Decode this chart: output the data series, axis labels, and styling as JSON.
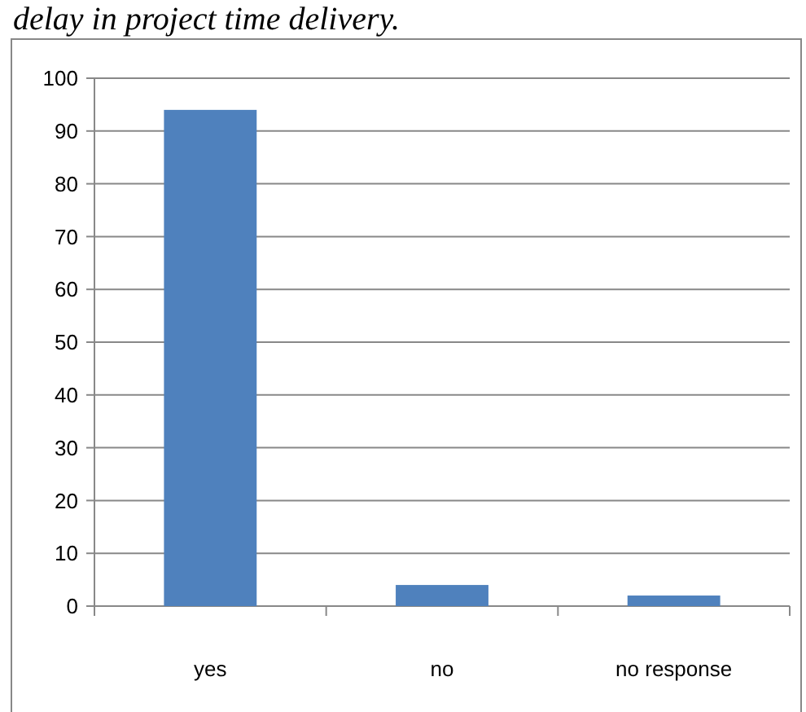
{
  "chart_data": {
    "type": "bar",
    "title": "delay in project time delivery.",
    "categories": [
      "yes",
      "no",
      "no response"
    ],
    "values": [
      94,
      4,
      2
    ],
    "color": "#4f81bd",
    "ylim": [
      0,
      100
    ],
    "yticks": [
      0,
      10,
      20,
      30,
      40,
      50,
      60,
      70,
      80,
      90,
      100
    ],
    "grid": "y"
  }
}
